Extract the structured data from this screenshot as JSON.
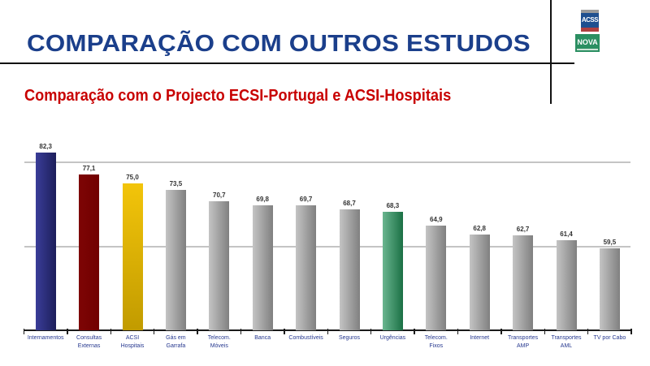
{
  "header": {
    "title": "COMPARAÇÃO COM OUTROS ESTUDOS",
    "subtitle": "Comparação com o Projecto ECSI-Portugal e ACSI-Hospitais",
    "logos": {
      "acss": "ACSS",
      "nova": "NOVA"
    }
  },
  "chart_data": {
    "type": "bar",
    "title": "Comparação com o Projecto ECSI-Portugal e ACSI-Hospitais",
    "xlabel": "",
    "ylabel": "",
    "ylim": [
      40,
      85
    ],
    "grid": true,
    "gridlines": [
      60,
      80
    ],
    "legend": null,
    "categories": [
      "Internamentos",
      "Consultas\nExternas",
      "ACSI\nHospitais",
      "Gás em\nGarrafa",
      "Telecom.\nMóveis",
      "Banca",
      "Combustíveis",
      "Seguros",
      "Urgências",
      "Telecom.\nFixos",
      "Internet",
      "Transportes\nAMP",
      "Transportes\nAML",
      "TV por Cabo"
    ],
    "values": [
      82.3,
      77.1,
      75.0,
      73.5,
      70.7,
      69.8,
      69.7,
      68.7,
      68.3,
      64.9,
      62.8,
      62.7,
      61.4,
      59.5
    ],
    "value_labels": [
      "82,3",
      "77,1",
      "75,0",
      "73,5",
      "70,7",
      "69,8",
      "69,7",
      "68,7",
      "68,3",
      "64,9",
      "62,8",
      "62,7",
      "61,4",
      "59,5"
    ],
    "bar_colors": [
      "#2e3192",
      "#7b0000",
      "#f2c200",
      "#a8a8a8",
      "#a8a8a8",
      "#a8a8a8",
      "#a8a8a8",
      "#a8a8a8",
      "#23935a",
      "#a8a8a8",
      "#a8a8a8",
      "#a8a8a8",
      "#a8a8a8",
      "#a8a8a8"
    ],
    "bar_shading": [
      "hd",
      "flat",
      "v",
      "h",
      "h",
      "h",
      "h",
      "h",
      "h",
      "h",
      "h",
      "h",
      "h",
      "h"
    ]
  }
}
